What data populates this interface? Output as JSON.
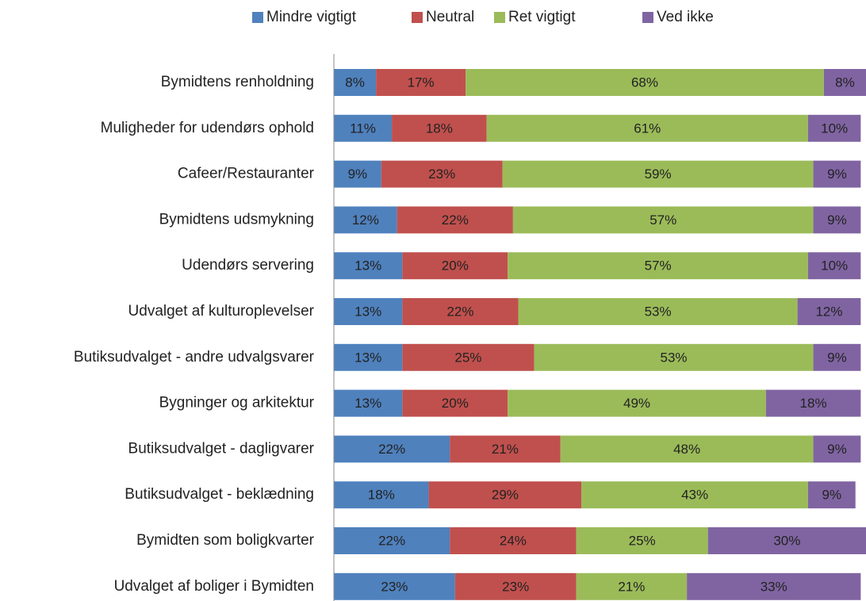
{
  "chart_data": {
    "type": "stacked-bar-horizontal",
    "categories": [
      "Bymidtens renholdning",
      "Muligheder for udendørs ophold",
      "Cafeer/Restauranter",
      "Bymidtens udsmykning",
      "Udendørs servering",
      "Udvalget af kulturoplevelser",
      "Butiksudvalget - andre udvalgsvarer",
      "Bygninger og arkitektur",
      "Butiksudvalget - dagligvarer",
      "Butiksudvalget - beklædning",
      "Bymidten som boligkvarter",
      "Udvalget af boliger i Bymidten"
    ],
    "series": [
      {
        "name": "Mindre vigtigt",
        "color": "#4f81bd",
        "values": [
          8,
          11,
          9,
          12,
          13,
          13,
          13,
          13,
          22,
          18,
          22,
          23
        ],
        "value_labels": [
          "8%",
          "11%",
          "9%",
          "12%",
          "13%",
          "13%",
          "13%",
          "13%",
          "22%",
          "18%",
          "22%",
          "23%"
        ]
      },
      {
        "name": "Neutral",
        "color": "#c0504d",
        "values": [
          17,
          18,
          23,
          22,
          20,
          22,
          25,
          20,
          21,
          29,
          24,
          23
        ],
        "value_labels": [
          "17%",
          "18%",
          "23%",
          "22%",
          "20%",
          "22%",
          "25%",
          "20%",
          "21%",
          "29%",
          "24%",
          "23%"
        ]
      },
      {
        "name": "Ret vigtigt",
        "color": "#9bbb59",
        "values": [
          68,
          61,
          59,
          57,
          57,
          53,
          53,
          49,
          48,
          43,
          25,
          21
        ],
        "value_labels": [
          "68%",
          "61%",
          "59%",
          "57%",
          "57%",
          "53%",
          "53%",
          "49%",
          "48%",
          "43%",
          "25%",
          "21%"
        ]
      },
      {
        "name": "Ved ikke",
        "color": "#8064a2",
        "values": [
          8,
          10,
          9,
          9,
          10,
          12,
          9,
          18,
          9,
          9,
          30,
          33
        ],
        "value_labels": [
          "8%",
          "10%",
          "9%",
          "9%",
          "10%",
          "12%",
          "9%",
          "18%",
          "9%",
          "9%",
          "30%",
          "33%"
        ]
      }
    ],
    "legend": "top"
  }
}
